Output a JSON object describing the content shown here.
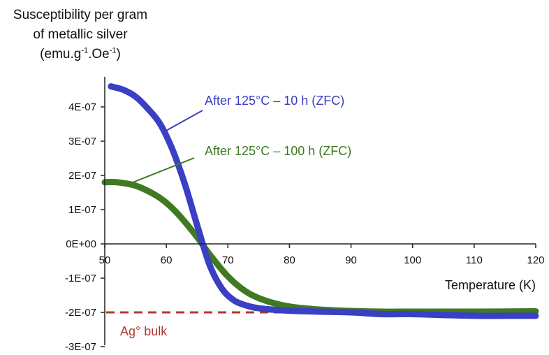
{
  "chart_data": {
    "type": "line",
    "ylabel_lines": [
      "Susceptibility per gram",
      "of metallic silver"
    ],
    "ylabel_units": {
      "prefix": "(emu.g",
      "exp1": "-1",
      "mid": ".Oe",
      "exp2": "-1",
      "suffix": ")"
    },
    "xlabel": "Temperature (K)",
    "xlim": [
      50,
      120
    ],
    "ylim": [
      -3e-07,
      4.5e-07
    ],
    "x_ticks": [
      "50",
      "60",
      "70",
      "80",
      "90",
      "100",
      "110",
      "120"
    ],
    "y_ticks": [
      "4E-07",
      "3E-07",
      "2E-07",
      "1E-07",
      "0E+00",
      "-1E-07",
      "-2E-07",
      "-3E-07"
    ],
    "y_tick_values": [
      4e-07,
      3e-07,
      2e-07,
      1e-07,
      0,
      -1e-07,
      -2e-07,
      -3e-07
    ],
    "grid": false,
    "series": [
      {
        "name": "After 125°C – 10 h (ZFC)",
        "color": "#3a3fc4",
        "x": [
          51,
          53,
          55,
          57,
          59,
          61,
          63,
          65,
          67,
          69,
          71,
          73,
          75,
          78,
          81,
          85,
          90,
          95,
          100,
          105,
          110,
          115,
          120
        ],
        "y": [
          4.6e-07,
          4.5e-07,
          4.3e-07,
          3.95e-07,
          3.5e-07,
          2.75e-07,
          1.75e-07,
          5.5e-08,
          -6e-08,
          -1.3e-07,
          -1.65e-07,
          -1.8e-07,
          -1.88e-07,
          -1.93e-07,
          -1.96e-07,
          -1.98e-07,
          -2e-07,
          -2.05e-07,
          -2.05e-07,
          -2.08e-07,
          -2.1e-07,
          -2.1e-07,
          -2.1e-07
        ]
      },
      {
        "name": "After 125°C – 100 h (ZFC)",
        "color": "#3f7a23",
        "x": [
          50,
          52,
          55,
          58,
          60,
          62,
          65,
          67,
          70,
          73,
          76,
          80,
          85,
          90,
          95,
          100,
          110,
          120
        ],
        "y": [
          1.8e-07,
          1.8e-07,
          1.7e-07,
          1.45e-07,
          1.2e-07,
          8.5e-08,
          2e-08,
          -3e-08,
          -9.5e-08,
          -1.4e-07,
          -1.65e-07,
          -1.83e-07,
          -1.92e-07,
          -1.96e-07,
          -1.98e-07,
          -1.98e-07,
          -1.98e-07,
          -1.97e-07
        ]
      }
    ],
    "reference_line": {
      "label": "Ag° bulk",
      "y": -2e-07,
      "color": "#b03a2e"
    }
  }
}
